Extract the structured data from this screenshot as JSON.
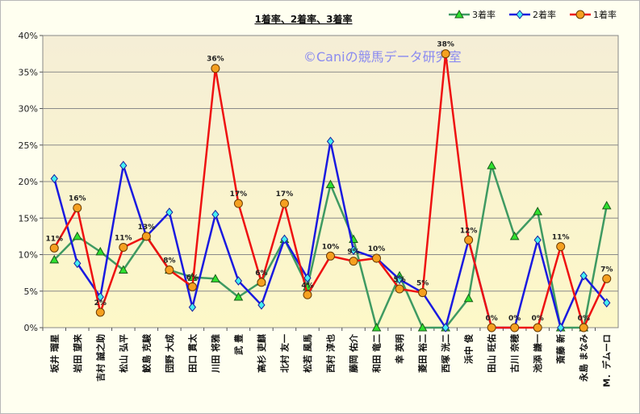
{
  "chart_data": {
    "type": "line",
    "title": "1着率、2着率、3着率",
    "watermark": "©Caniの競馬データ研究室",
    "y_axis": {
      "min": 0,
      "max": 40,
      "step": 5,
      "format": "percent"
    },
    "grid": true,
    "legend_position": "top-right",
    "categories": [
      "坂井 瑠星",
      "岩田 望来",
      "吉村 誠之助",
      "松山 弘平",
      "鮫島 克駿",
      "団野 大成",
      "田口 貫太",
      "川田 将雅",
      "武 豊",
      "高杉 吏麒",
      "北村 友一",
      "松若 風馬",
      "西村 淳也",
      "藤岡 佑介",
      "和田 竜二",
      "幸 英明",
      "菱田 裕二",
      "西塚 洸二",
      "浜中 俊",
      "田山 旺佑",
      "古川 奈穂",
      "池添 謙一",
      "斎藤 新",
      "永島 まなみ",
      "M．デムーロ"
    ],
    "series": [
      {
        "name": "3着率",
        "color": "#3f9a62",
        "marker": "triangle",
        "marker_color": "#2fe02f",
        "values": [
          9.3,
          12.5,
          10.4,
          7.9,
          12.5,
          7.9,
          6.9,
          6.7,
          4.2,
          6.3,
          12.1,
          5.6,
          19.6,
          12.1,
          0,
          7.1,
          0,
          0,
          4.0,
          22.2,
          12.5,
          15.9,
          0,
          0,
          16.7
        ]
      },
      {
        "name": "2着率",
        "color": "#1a1ae0",
        "marker": "diamond",
        "marker_color": "#44f0f0",
        "values": [
          20.4,
          8.8,
          4.2,
          22.2,
          12.5,
          15.8,
          2.8,
          15.5,
          6.4,
          3.1,
          12.1,
          6.8,
          25.5,
          10.6,
          9.5,
          6.6,
          4.8,
          0,
          12.0,
          0,
          0,
          12.0,
          0,
          7.1,
          3.4
        ]
      },
      {
        "name": "1着率",
        "color": "#ee1111",
        "marker": "circle",
        "marker_color": "#f5a020",
        "values": [
          10.9,
          16.4,
          2.1,
          11.0,
          12.5,
          7.9,
          5.6,
          35.5,
          17.0,
          6.2,
          17.0,
          4.5,
          9.8,
          9.1,
          9.5,
          5.3,
          4.8,
          37.5,
          12.0,
          0,
          0,
          0,
          11.1,
          0,
          6.7
        ]
      }
    ],
    "data_labels": {
      "series": "1着率",
      "labels": [
        "11%",
        "16%",
        "2%",
        "11%",
        "13%",
        "8%",
        "6%",
        "36%",
        "17%",
        "6%",
        "17%",
        "4%",
        "10%",
        "9%",
        "10%",
        "5%",
        "5%",
        "38%",
        "12%",
        "0%",
        "0%",
        "0%",
        "11%",
        "0%",
        "7%"
      ]
    }
  }
}
